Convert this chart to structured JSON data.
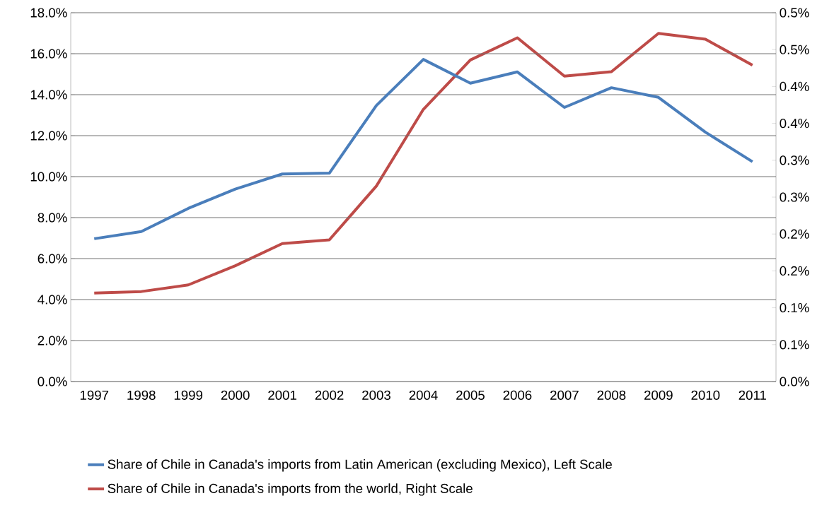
{
  "chart_data": {
    "type": "line",
    "categories": [
      "1997",
      "1998",
      "1999",
      "2000",
      "2001",
      "2002",
      "2003",
      "2004",
      "2005",
      "2006",
      "2007",
      "2008",
      "2009",
      "2010",
      "2011"
    ],
    "series": [
      {
        "name": "Share of Chile in Canada's imports from Latin American (excluding Mexico), Left Scale",
        "color": "#4a7ebb",
        "values": [
          6.97,
          7.32,
          8.45,
          9.39,
          10.13,
          10.17,
          13.47,
          15.72,
          14.56,
          15.11,
          13.38,
          14.34,
          13.87,
          12.17,
          10.73
        ]
      },
      {
        "name": "Share of Chile in Canada's imports from the world, Right Scale",
        "color": "#be4b48",
        "axis": "y2",
        "values": [
          0.12,
          0.122,
          0.131,
          0.157,
          0.187,
          0.192,
          0.265,
          0.369,
          0.436,
          0.466,
          0.414,
          0.42,
          0.472,
          0.464,
          0.429
        ]
      }
    ],
    "ylim": [
      0,
      18
    ],
    "yticks": [
      {
        "value": 0,
        "label": "0.0%"
      },
      {
        "value": 2,
        "label": "2.0%"
      },
      {
        "value": 4,
        "label": "4.0%"
      },
      {
        "value": 6,
        "label": "6.0%"
      },
      {
        "value": 8,
        "label": "8.0%"
      },
      {
        "value": 10,
        "label": "10.0%"
      },
      {
        "value": 12,
        "label": "12.0%"
      },
      {
        "value": 14,
        "label": "14.0%"
      },
      {
        "value": 16,
        "label": "16.0%"
      },
      {
        "value": 18,
        "label": "18.0%"
      }
    ],
    "y2lim": [
      0,
      0.5
    ],
    "y2ticks": [
      {
        "value": 0,
        "label": "0.0%"
      },
      {
        "value": 0.05,
        "label": "0.1%"
      },
      {
        "value": 0.1,
        "label": "0.1%"
      },
      {
        "value": 0.15,
        "label": "0.2%"
      },
      {
        "value": 0.2,
        "label": "0.2%"
      },
      {
        "value": 0.25,
        "label": "0.3%"
      },
      {
        "value": 0.3,
        "label": "0.3%"
      },
      {
        "value": 0.35,
        "label": "0.4%"
      },
      {
        "value": 0.4,
        "label": "0.4%"
      },
      {
        "value": 0.45,
        "label": "0.5%"
      },
      {
        "value": 0.5,
        "label": "0.5%"
      }
    ],
    "grid": "y",
    "legend": "bottom"
  }
}
